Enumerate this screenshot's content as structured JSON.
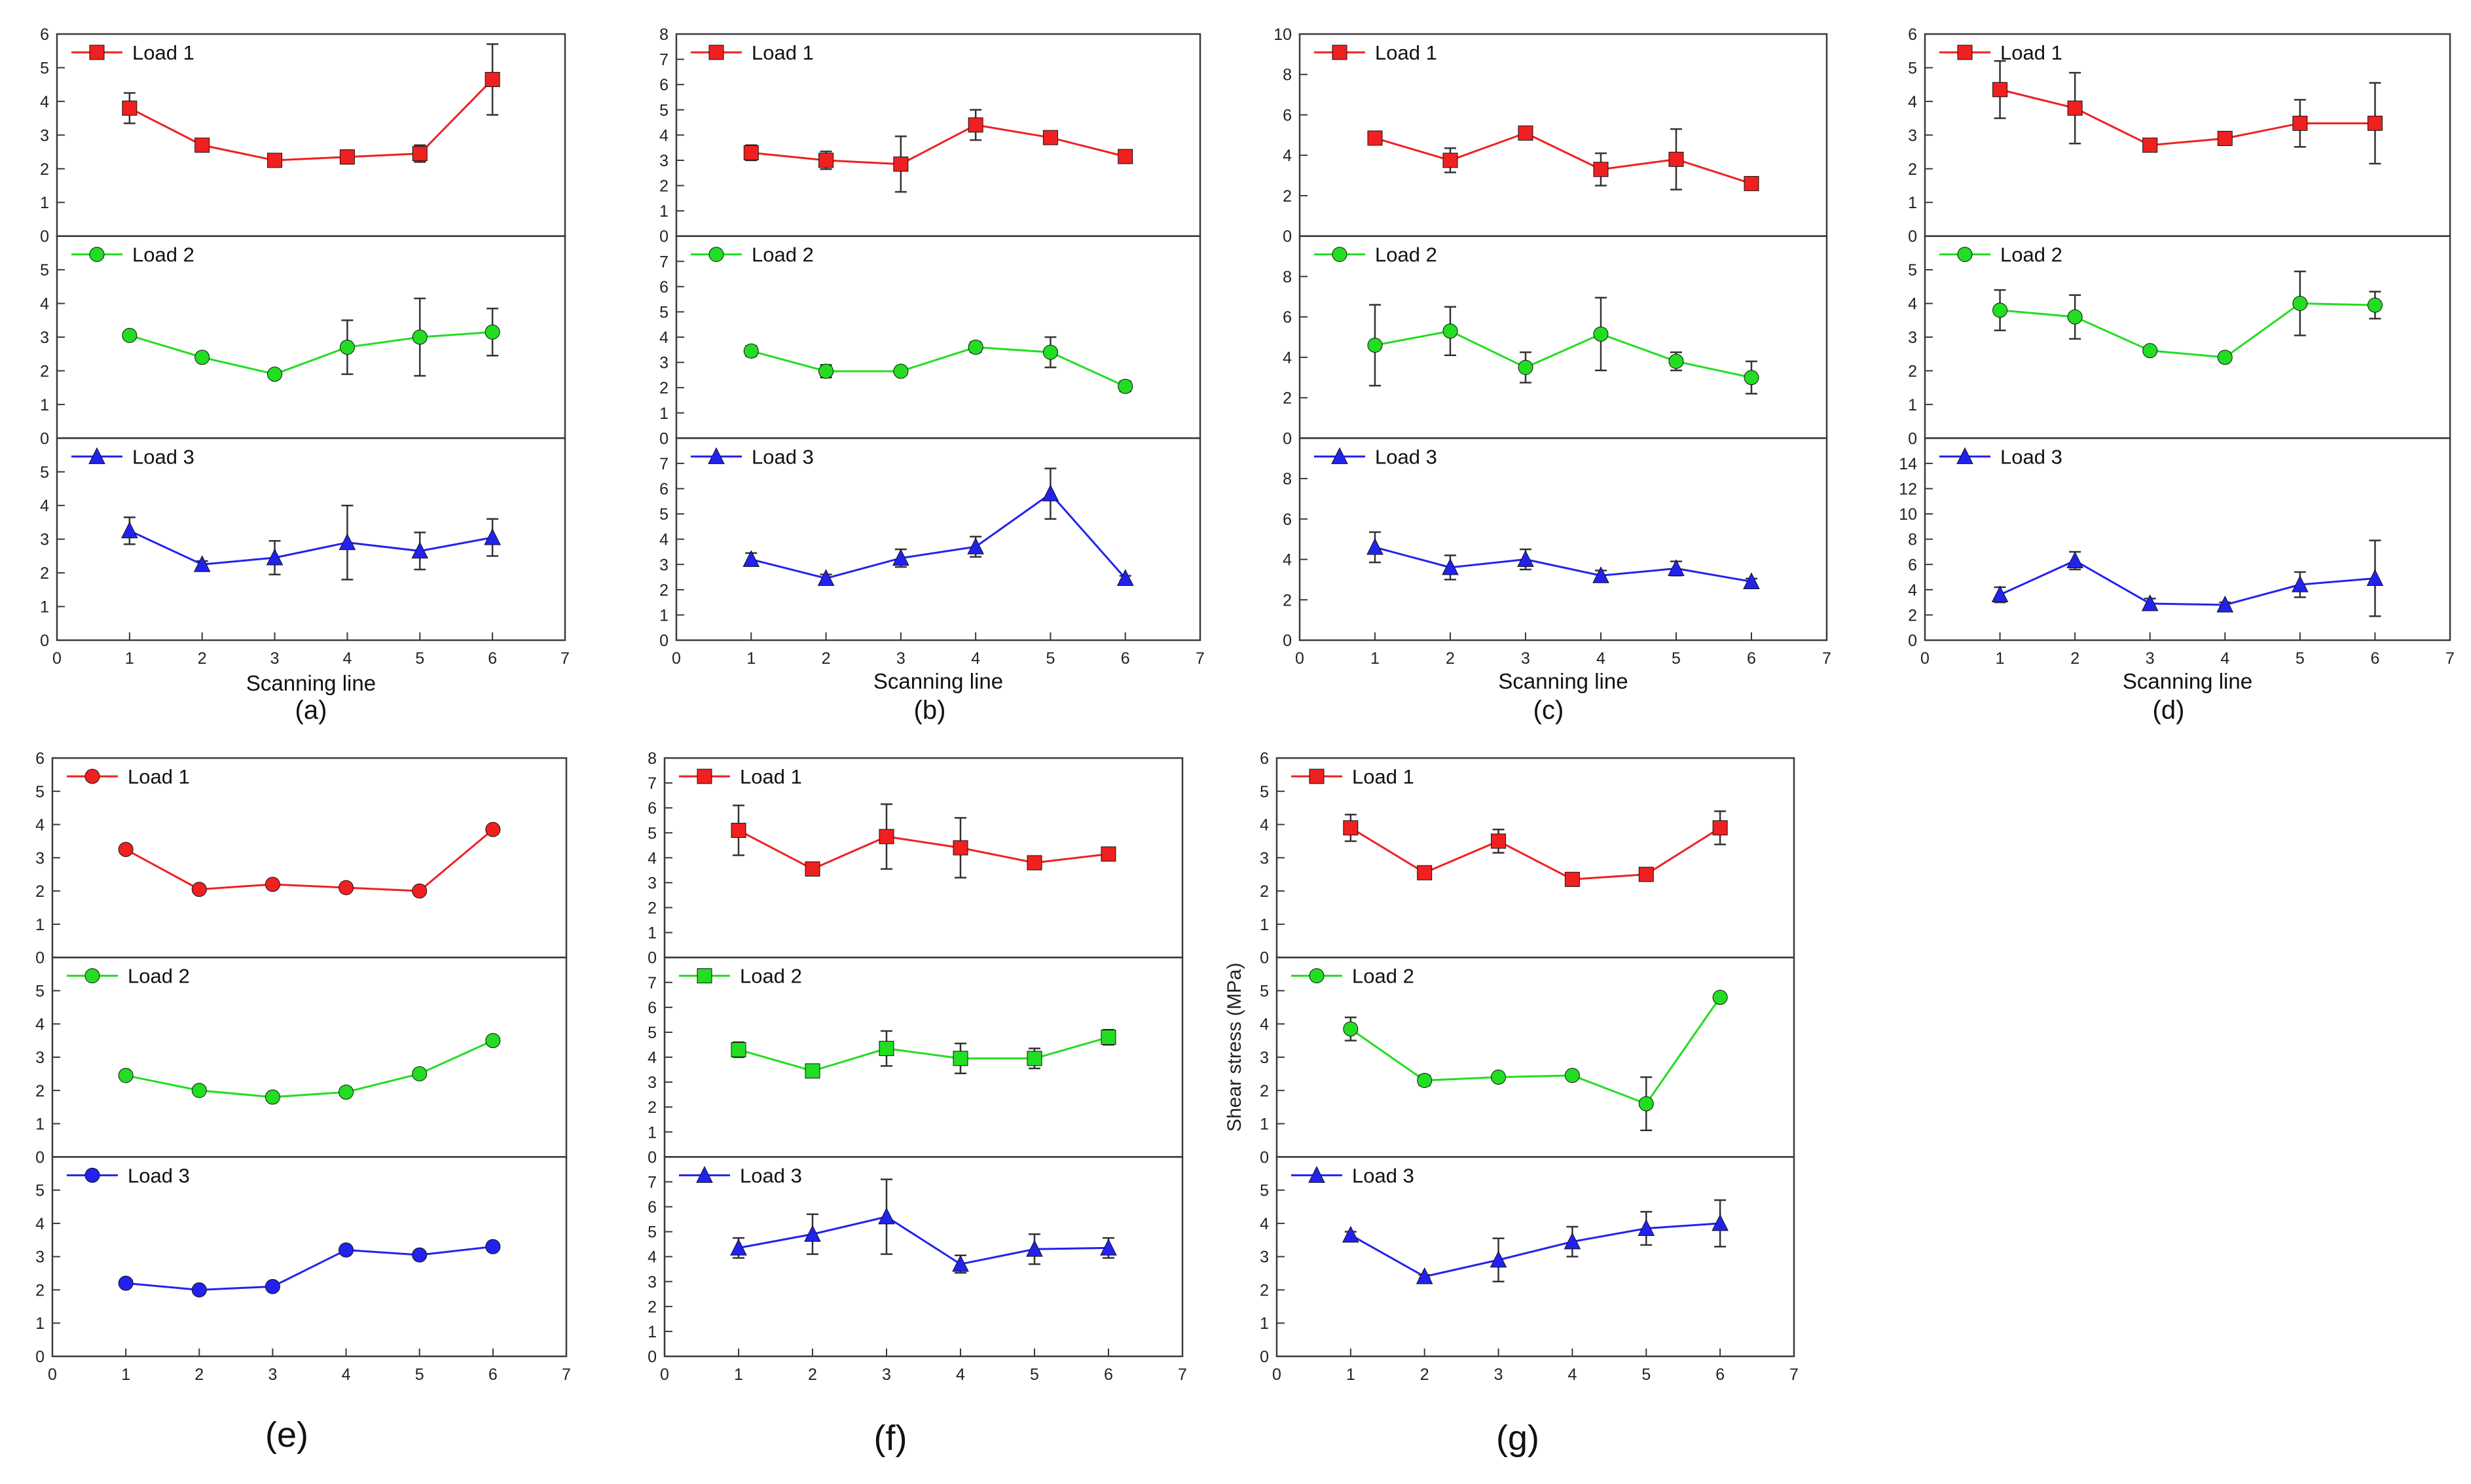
{
  "colors": {
    "load1": "#f02020",
    "load2": "#22dd22",
    "load3": "#2222ee",
    "axis": "#3a3a3a"
  },
  "legend_labels": [
    "Load 1",
    "Load 2",
    "Load 3"
  ],
  "ylabel_g": "Shear stress (MPa)",
  "chart_data": [
    {
      "type": "line",
      "panel_label": "(a)",
      "xlabel": "Scanning line",
      "x": [
        1,
        2,
        3,
        4,
        5,
        6
      ],
      "xlim": [
        0,
        7
      ],
      "xticks": [
        0,
        1,
        2,
        3,
        4,
        5,
        6,
        7
      ],
      "subplots": [
        {
          "name": "Load 1",
          "marker": "square",
          "values": [
            3.8,
            2.7,
            2.25,
            2.35,
            2.45,
            4.65
          ],
          "errors": [
            0.45,
            0.1,
            0.05,
            0.2,
            0.25,
            1.05
          ],
          "ylim": [
            0,
            6
          ],
          "yticks": [
            0,
            1,
            2,
            3,
            4,
            5,
            6
          ]
        },
        {
          "name": "Load 2",
          "marker": "circle",
          "values": [
            3.05,
            2.4,
            1.9,
            2.7,
            3.0,
            3.15
          ],
          "errors": [
            0.05,
            0.1,
            0.05,
            0.8,
            1.15,
            0.7
          ],
          "ylim": [
            0,
            6
          ],
          "yticks": [
            0,
            1,
            2,
            3,
            4,
            5
          ]
        },
        {
          "name": "Load 3",
          "marker": "triangle",
          "values": [
            3.25,
            2.25,
            2.45,
            2.9,
            2.65,
            3.05
          ],
          "errors": [
            0.4,
            0.1,
            0.5,
            1.1,
            0.55,
            0.55
          ],
          "ylim": [
            0,
            6
          ],
          "yticks": [
            0,
            1,
            2,
            3,
            4,
            5
          ]
        }
      ]
    },
    {
      "type": "line",
      "panel_label": "(b)",
      "xlabel": "Scanning line",
      "x": [
        1,
        2,
        3,
        4,
        5,
        6
      ],
      "xlim": [
        0,
        7
      ],
      "xticks": [
        0,
        1,
        2,
        3,
        4,
        5,
        6,
        7
      ],
      "subplots": [
        {
          "name": "Load 1",
          "marker": "square",
          "values": [
            3.3,
            3.0,
            2.85,
            4.4,
            3.9,
            3.15
          ],
          "errors": [
            0.3,
            0.35,
            1.1,
            0.6,
            0.25,
            0.1
          ],
          "ylim": [
            0,
            8
          ],
          "yticks": [
            0,
            1,
            2,
            3,
            4,
            5,
            6,
            7,
            8
          ]
        },
        {
          "name": "Load 2",
          "marker": "circle",
          "values": [
            3.45,
            2.65,
            2.65,
            3.6,
            3.4,
            2.05
          ],
          "errors": [
            0.2,
            0.25,
            0.1,
            0.2,
            0.6,
            0.2
          ],
          "ylim": [
            0,
            8
          ],
          "yticks": [
            0,
            1,
            2,
            3,
            4,
            5,
            6,
            7
          ]
        },
        {
          "name": "Load 3",
          "marker": "triangle",
          "values": [
            3.2,
            2.45,
            3.25,
            3.7,
            5.8,
            2.45
          ],
          "errors": [
            0.25,
            0.15,
            0.35,
            0.4,
            1.0,
            0.1
          ],
          "ylim": [
            0,
            8
          ],
          "yticks": [
            0,
            1,
            2,
            3,
            4,
            5,
            6,
            7
          ]
        }
      ]
    },
    {
      "type": "line",
      "panel_label": "(c)",
      "xlabel": "Scanning line",
      "x": [
        1,
        2,
        3,
        4,
        5,
        6
      ],
      "xlim": [
        0,
        7
      ],
      "xticks": [
        0,
        1,
        2,
        3,
        4,
        5,
        6,
        7
      ],
      "subplots": [
        {
          "name": "Load 1",
          "marker": "square",
          "values": [
            4.85,
            3.75,
            5.1,
            3.3,
            3.8,
            2.6
          ],
          "errors": [
            0.2,
            0.6,
            0.3,
            0.8,
            1.5,
            0.1
          ],
          "ylim": [
            0,
            10
          ],
          "yticks": [
            0,
            2,
            4,
            6,
            8,
            10
          ]
        },
        {
          "name": "Load 2",
          "marker": "circle",
          "values": [
            4.6,
            5.3,
            3.5,
            5.15,
            3.8,
            3.0
          ],
          "errors": [
            2.0,
            1.2,
            0.75,
            1.8,
            0.45,
            0.8
          ],
          "ylim": [
            0,
            10
          ],
          "yticks": [
            0,
            2,
            4,
            6,
            8
          ]
        },
        {
          "name": "Load 3",
          "marker": "triangle",
          "values": [
            4.6,
            3.6,
            4.0,
            3.2,
            3.55,
            2.9
          ],
          "errors": [
            0.75,
            0.6,
            0.5,
            0.25,
            0.35,
            0.15
          ],
          "ylim": [
            0,
            10
          ],
          "yticks": [
            0,
            2,
            4,
            6,
            8
          ]
        }
      ]
    },
    {
      "type": "line",
      "panel_label": "(d)",
      "xlabel": "Scanning line",
      "x": [
        1,
        2,
        3,
        4,
        5,
        6
      ],
      "xlim": [
        0,
        7
      ],
      "xticks": [
        0,
        1,
        2,
        3,
        4,
        5,
        6,
        7
      ],
      "subplots": [
        {
          "name": "Load 1",
          "marker": "square",
          "values": [
            4.35,
            3.8,
            2.7,
            2.9,
            3.35,
            3.35
          ],
          "errors": [
            0.85,
            1.05,
            0.05,
            0.2,
            0.7,
            1.2
          ],
          "ylim": [
            0,
            6
          ],
          "yticks": [
            0,
            1,
            2,
            3,
            4,
            5,
            6
          ]
        },
        {
          "name": "Load 2",
          "marker": "circle",
          "values": [
            3.8,
            3.6,
            2.6,
            2.4,
            4.0,
            3.95
          ],
          "errors": [
            0.6,
            0.65,
            0.05,
            0.05,
            0.95,
            0.4
          ],
          "ylim": [
            0,
            6
          ],
          "yticks": [
            0,
            1,
            2,
            3,
            4,
            5
          ]
        },
        {
          "name": "Load 3",
          "marker": "triangle",
          "values": [
            3.6,
            6.3,
            2.9,
            2.8,
            4.4,
            4.9
          ],
          "errors": [
            0.6,
            0.7,
            0.4,
            0.2,
            1.0,
            3.0
          ],
          "ylim": [
            0,
            16
          ],
          "yticks": [
            0,
            2,
            4,
            6,
            8,
            10,
            12,
            14
          ]
        }
      ]
    },
    {
      "type": "line",
      "panel_label": "(e)",
      "xlabel": "",
      "x": [
        1,
        2,
        3,
        4,
        5,
        6
      ],
      "xlim": [
        0,
        7
      ],
      "xticks": [
        0,
        1,
        2,
        3,
        4,
        5,
        6,
        7
      ],
      "subplots": [
        {
          "name": "Load 1",
          "marker": "circle",
          "values": [
            3.25,
            2.05,
            2.2,
            2.1,
            2.0,
            3.85
          ],
          "errors": [
            0,
            0,
            0,
            0,
            0,
            0
          ],
          "ylim": [
            0,
            6
          ],
          "yticks": [
            0,
            1,
            2,
            3,
            4,
            5,
            6
          ]
        },
        {
          "name": "Load 2",
          "marker": "circle",
          "values": [
            2.45,
            2.0,
            1.8,
            1.95,
            2.5,
            3.5
          ],
          "errors": [
            0,
            0,
            0,
            0,
            0,
            0
          ],
          "ylim": [
            0,
            6
          ],
          "yticks": [
            0,
            1,
            2,
            3,
            4,
            5
          ]
        },
        {
          "name": "Load 3",
          "marker": "circle",
          "values": [
            2.2,
            2.0,
            2.1,
            3.2,
            3.05,
            3.3
          ],
          "errors": [
            0,
            0,
            0,
            0,
            0,
            0
          ],
          "ylim": [
            0,
            6
          ],
          "yticks": [
            0,
            1,
            2,
            3,
            4,
            5
          ]
        }
      ]
    },
    {
      "type": "line",
      "panel_label": "(f)",
      "xlabel": "",
      "x": [
        1,
        2,
        3,
        4,
        5,
        6
      ],
      "xlim": [
        0,
        7
      ],
      "xticks": [
        0,
        1,
        2,
        3,
        4,
        5,
        6,
        7
      ],
      "subplots": [
        {
          "name": "Load 1",
          "marker": "square",
          "values": [
            5.1,
            3.55,
            4.85,
            4.4,
            3.8,
            4.15
          ],
          "errors": [
            1.0,
            0.1,
            1.3,
            1.2,
            0.15,
            0.15
          ],
          "ylim": [
            0,
            8
          ],
          "yticks": [
            0,
            1,
            2,
            3,
            4,
            5,
            6,
            7,
            8
          ]
        },
        {
          "name": "Load 2",
          "marker": "square",
          "values": [
            4.3,
            3.45,
            4.35,
            3.95,
            3.95,
            4.8
          ],
          "errors": [
            0.3,
            0.05,
            0.7,
            0.6,
            0.4,
            0.3
          ],
          "ylim": [
            0,
            8
          ],
          "yticks": [
            0,
            1,
            2,
            3,
            4,
            5,
            6,
            7
          ]
        },
        {
          "name": "Load 3",
          "marker": "triangle",
          "values": [
            4.35,
            4.9,
            5.6,
            3.7,
            4.3,
            4.35
          ],
          "errors": [
            0.4,
            0.8,
            1.5,
            0.35,
            0.6,
            0.4
          ],
          "ylim": [
            0,
            8
          ],
          "yticks": [
            0,
            1,
            2,
            3,
            4,
            5,
            6,
            7
          ]
        }
      ]
    },
    {
      "type": "line",
      "panel_label": "(g)",
      "xlabel": "",
      "ylabel": "Shear stress (MPa)",
      "x": [
        1,
        2,
        3,
        4,
        5,
        6
      ],
      "xlim": [
        0,
        7
      ],
      "xticks": [
        0,
        1,
        2,
        3,
        4,
        5,
        6,
        7
      ],
      "subplots": [
        {
          "name": "Load 1",
          "marker": "square",
          "values": [
            3.9,
            2.55,
            3.5,
            2.35,
            2.5,
            3.9
          ],
          "errors": [
            0.4,
            0.05,
            0.35,
            0.05,
            0.05,
            0.5
          ],
          "ylim": [
            0,
            6
          ],
          "yticks": [
            0,
            1,
            2,
            3,
            4,
            5,
            6
          ]
        },
        {
          "name": "Load 2",
          "marker": "circle",
          "values": [
            3.85,
            2.3,
            2.4,
            2.45,
            1.6,
            4.8
          ],
          "errors": [
            0.35,
            0.15,
            0.05,
            0.1,
            0.8,
            0.05
          ],
          "ylim": [
            0,
            6
          ],
          "yticks": [
            0,
            1,
            2,
            3,
            4,
            5
          ]
        },
        {
          "name": "Load 3",
          "marker": "triangle",
          "values": [
            3.65,
            2.4,
            2.9,
            3.45,
            3.85,
            4.0
          ],
          "errors": [
            0.1,
            0.05,
            0.65,
            0.45,
            0.5,
            0.7
          ],
          "ylim": [
            0,
            6
          ],
          "yticks": [
            0,
            1,
            2,
            3,
            4,
            5
          ]
        }
      ]
    }
  ]
}
